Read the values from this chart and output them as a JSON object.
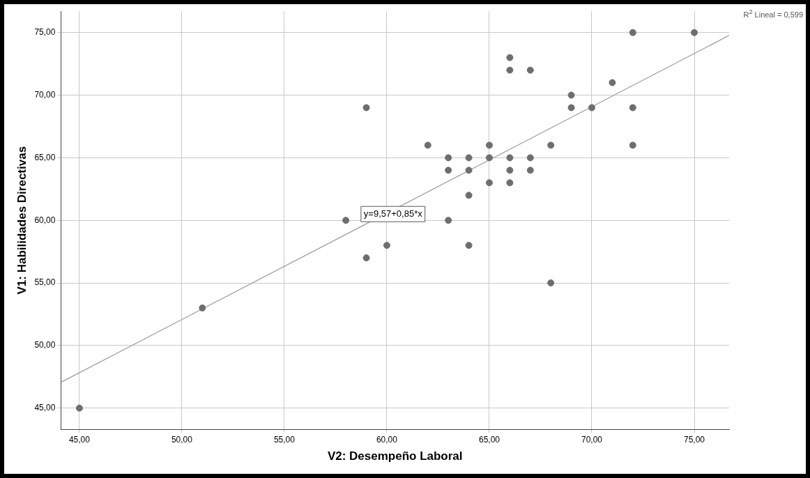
{
  "chart_data": {
    "type": "scatter",
    "xlabel": "V2: Desempeño Laboral",
    "ylabel": "V1: Habilidades Directivas",
    "series": [
      {
        "color": "#6e6e6e",
        "marker": "circle",
        "x": [
          45,
          51,
          58,
          59,
          59,
          60,
          62,
          63,
          63,
          63,
          64,
          64,
          64,
          64,
          65,
          65,
          65,
          66,
          66,
          66,
          66,
          66,
          67,
          67,
          67,
          68,
          68,
          69,
          69,
          70,
          71,
          72,
          72,
          72,
          75
        ],
        "values": [
          45,
          53,
          60,
          69,
          57,
          58,
          66,
          65,
          64,
          60,
          65,
          64,
          62,
          58,
          66,
          65,
          63,
          73,
          72,
          65,
          64,
          63,
          72,
          65,
          64,
          66,
          55,
          70,
          69,
          69,
          71,
          75,
          69,
          66,
          75
        ]
      },
      {
        "type": "line",
        "color": "#9a9a9a",
        "marker": "none",
        "x": [
          44.1,
          76.7
        ],
        "values": [
          47.06,
          74.77
        ]
      }
    ],
    "xlim": [
      44.1,
      76.7
    ],
    "ylim": [
      43.3,
      76.7
    ],
    "xticks": [
      {
        "value": 45,
        "label": "45,00"
      },
      {
        "value": 50,
        "label": "50,00"
      },
      {
        "value": 55,
        "label": "55,00"
      },
      {
        "value": 60,
        "label": "60,00"
      },
      {
        "value": 65,
        "label": "65,00"
      },
      {
        "value": 70,
        "label": "70,00"
      },
      {
        "value": 75,
        "label": "75,00"
      }
    ],
    "yticks": [
      {
        "value": 45,
        "label": "45,00"
      },
      {
        "value": 50,
        "label": "50,00"
      },
      {
        "value": 55,
        "label": "55,00"
      },
      {
        "value": 60,
        "label": "60,00"
      },
      {
        "value": 65,
        "label": "65,00"
      },
      {
        "value": 70,
        "label": "70,00"
      },
      {
        "value": 75,
        "label": "75,00"
      }
    ],
    "annotations": [
      {
        "text": "y=9,57+0,85*x",
        "x": 60.3,
        "y": 60.5
      },
      "R$^{2}$ Lineal = 0,599"
    ],
    "grid": true,
    "legend": false,
    "line_style": "solid"
  }
}
